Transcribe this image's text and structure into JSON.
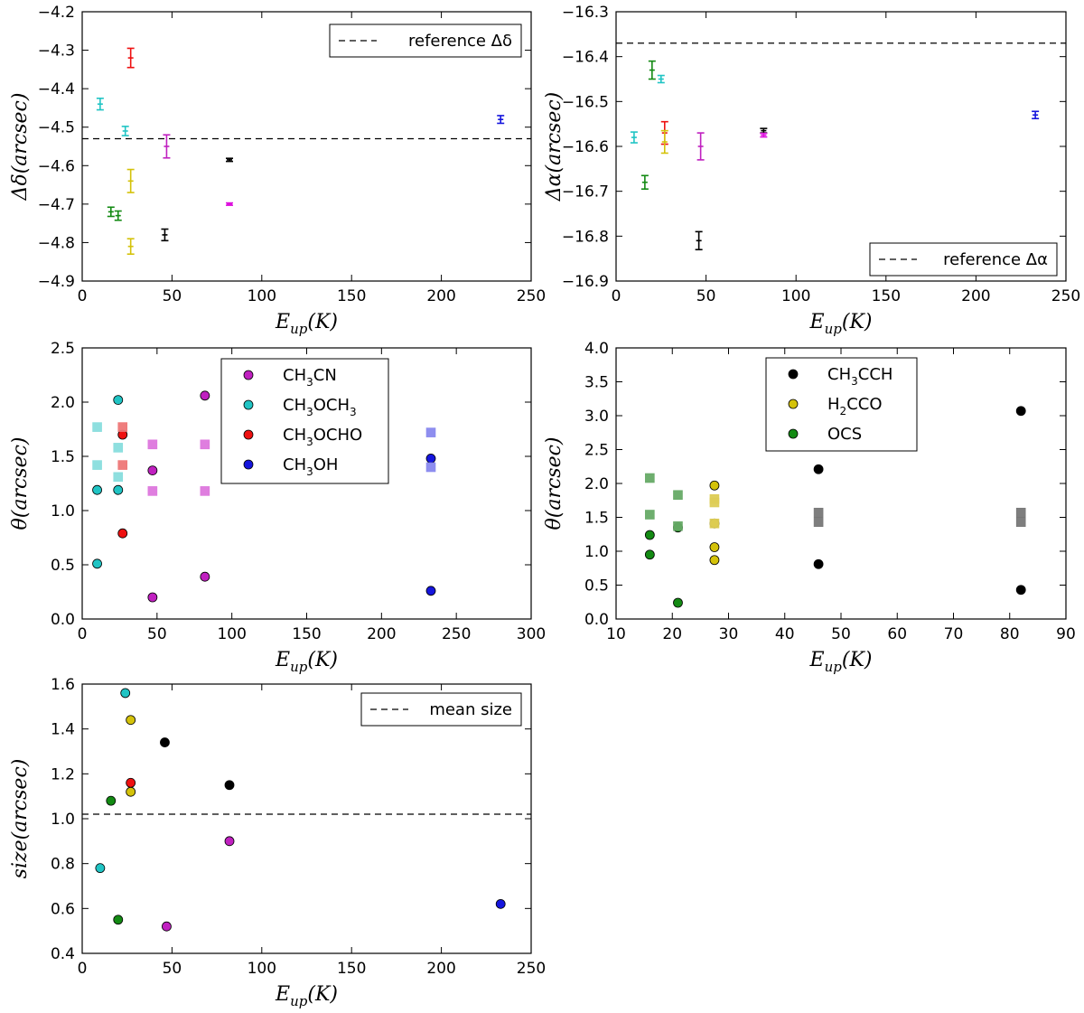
{
  "chart_data": [
    {
      "id": "ddec",
      "type": "scatter",
      "title": "",
      "xlabel": "E_up(K)",
      "ylabel": "Δδ(arcsec)",
      "xlim": [
        0,
        250
      ],
      "ylim": [
        -4.9,
        -4.2
      ],
      "xticks": [
        0,
        50,
        100,
        150,
        200,
        250
      ],
      "xtick_labels": [
        "0",
        "50",
        "100",
        "150",
        "200",
        "250"
      ],
      "yticks": [
        -4.9,
        -4.8,
        -4.7,
        -4.6,
        -4.5,
        -4.4,
        -4.3,
        -4.2
      ],
      "ytick_labels": [
        "−4.9",
        "−4.8",
        "−4.7",
        "−4.6",
        "−4.5",
        "−4.4",
        "−4.3",
        "−4.2"
      ],
      "grid": false,
      "legend": {
        "position": "top-right",
        "entries": [
          {
            "label": "reference Δδ",
            "style": "dashed"
          }
        ]
      },
      "hlines": [
        {
          "y": -4.53,
          "style": "dashed",
          "color": "#000000",
          "label": "reference Δδ"
        }
      ],
      "errorbars": [
        {
          "x": 10,
          "y": -4.44,
          "err": 0.015,
          "color": "#20c4c4"
        },
        {
          "x": 24,
          "y": -4.51,
          "err": 0.012,
          "color": "#20c4c4"
        },
        {
          "x": 27,
          "y": -4.32,
          "err": 0.025,
          "color": "#ee1111"
        },
        {
          "x": 47,
          "y": -4.55,
          "err": 0.03,
          "color": "#c020c0"
        },
        {
          "x": 27,
          "y": -4.64,
          "err": 0.03,
          "color": "#d4c20a"
        },
        {
          "x": 27,
          "y": -4.81,
          "err": 0.02,
          "color": "#d4c20a"
        },
        {
          "x": 16,
          "y": -4.72,
          "err": 0.012,
          "color": "#138a13"
        },
        {
          "x": 20,
          "y": -4.73,
          "err": 0.012,
          "color": "#138a13"
        },
        {
          "x": 46,
          "y": -4.78,
          "err": 0.015,
          "color": "#000000"
        },
        {
          "x": 82,
          "y": -4.585,
          "err": 0.004,
          "color": "#000000"
        },
        {
          "x": 82,
          "y": -4.7,
          "err": 0.003,
          "color": "#dd11dd"
        },
        {
          "x": 233,
          "y": -4.48,
          "err": 0.01,
          "color": "#1515dd"
        }
      ]
    },
    {
      "id": "dra",
      "type": "scatter",
      "title": "",
      "xlabel": "E_up(K)",
      "ylabel": "Δα(arcsec)",
      "xlim": [
        0,
        250
      ],
      "ylim": [
        -16.9,
        -16.3
      ],
      "xticks": [
        0,
        50,
        100,
        150,
        200,
        250
      ],
      "xtick_labels": [
        "0",
        "50",
        "100",
        "150",
        "200",
        "250"
      ],
      "yticks": [
        -16.9,
        -16.8,
        -16.7,
        -16.6,
        -16.5,
        -16.4,
        -16.3
      ],
      "ytick_labels": [
        "−16.9",
        "−16.8",
        "−16.7",
        "−16.6",
        "−16.5",
        "−16.4",
        "−16.3"
      ],
      "grid": false,
      "legend": {
        "position": "bottom-right",
        "entries": [
          {
            "label": "reference Δα",
            "style": "dashed"
          }
        ]
      },
      "hlines": [
        {
          "y": -16.37,
          "style": "dashed",
          "color": "#000000",
          "label": "reference Δα"
        }
      ],
      "errorbars": [
        {
          "x": 10,
          "y": -16.58,
          "err": 0.012,
          "color": "#20c4c4"
        },
        {
          "x": 25,
          "y": -16.45,
          "err": 0.008,
          "color": "#20c4c4"
        },
        {
          "x": 20,
          "y": -16.43,
          "err": 0.02,
          "color": "#138a13"
        },
        {
          "x": 16,
          "y": -16.68,
          "err": 0.015,
          "color": "#138a13"
        },
        {
          "x": 27,
          "y": -16.57,
          "err": 0.025,
          "color": "#ee1111"
        },
        {
          "x": 27,
          "y": -16.59,
          "err": 0.025,
          "color": "#d4c20a"
        },
        {
          "x": 47,
          "y": -16.6,
          "err": 0.03,
          "color": "#c020c0"
        },
        {
          "x": 46,
          "y": -16.81,
          "err": 0.02,
          "color": "#000000"
        },
        {
          "x": 82,
          "y": -16.565,
          "err": 0.005,
          "color": "#000000"
        },
        {
          "x": 82,
          "y": -16.575,
          "err": 0.004,
          "color": "#dd11dd"
        },
        {
          "x": 233,
          "y": -16.53,
          "err": 0.008,
          "color": "#1515dd"
        }
      ]
    },
    {
      "id": "theta1",
      "type": "scatter",
      "title": "",
      "xlabel": "E_up(K)",
      "ylabel": "θ(arcsec)",
      "xlim": [
        0,
        300
      ],
      "ylim": [
        0.0,
        2.5
      ],
      "xticks": [
        0,
        50,
        100,
        150,
        200,
        250,
        300
      ],
      "xtick_labels": [
        "0",
        "50",
        "100",
        "150",
        "200",
        "250",
        "300"
      ],
      "yticks": [
        0.0,
        0.5,
        1.0,
        1.5,
        2.0,
        2.5
      ],
      "ytick_labels": [
        "0.0",
        "0.5",
        "1.0",
        "1.5",
        "2.0",
        "2.5"
      ],
      "grid": false,
      "legend": {
        "position": "top-center",
        "entries": [
          {
            "label": "CH",
            "sub": "3",
            "rest": "CN",
            "color": "#c020c0"
          },
          {
            "label": "CH",
            "sub": "3",
            "rest": "OCH",
            "sub2": "3",
            "color": "#20c4c4"
          },
          {
            "label": "CH",
            "sub": "3",
            "rest": "OCHO",
            "color": "#ee1111"
          },
          {
            "label": "CH",
            "sub": "3",
            "rest": "OH",
            "color": "#1515dd"
          }
        ]
      },
      "series": [
        {
          "name": "CH3CN",
          "marker": "circle",
          "color": "#c020c0",
          "x": [
            47,
            82,
            47,
            82
          ],
          "y": [
            1.37,
            2.06,
            0.2,
            0.39
          ]
        },
        {
          "name": "CH3CN (squares)",
          "marker": "square",
          "color": "#dd77dd",
          "x": [
            47,
            82,
            47,
            82
          ],
          "y": [
            1.61,
            1.61,
            1.18,
            1.18
          ]
        },
        {
          "name": "CH3OCH3",
          "marker": "circle",
          "color": "#20c4c4",
          "x": [
            10,
            24,
            24,
            10
          ],
          "y": [
            1.19,
            2.02,
            1.19,
            0.51
          ]
        },
        {
          "name": "CH3OCH3 (squares)",
          "marker": "square",
          "color": "#88dddd",
          "x": [
            10,
            10,
            24,
            24
          ],
          "y": [
            1.77,
            1.42,
            1.58,
            1.31
          ]
        },
        {
          "name": "CH3OCHO",
          "marker": "circle",
          "color": "#ee1111",
          "x": [
            27,
            27
          ],
          "y": [
            1.7,
            0.79
          ]
        },
        {
          "name": "CH3OCHO (squares)",
          "marker": "square",
          "color": "#ee7777",
          "x": [
            27,
            27
          ],
          "y": [
            1.77,
            1.42
          ]
        },
        {
          "name": "CH3OH",
          "marker": "circle",
          "color": "#1515dd",
          "x": [
            233,
            233
          ],
          "y": [
            1.48,
            0.26
          ]
        },
        {
          "name": "CH3OH (squares)",
          "marker": "square",
          "color": "#8888ee",
          "x": [
            233,
            233
          ],
          "y": [
            1.72,
            1.4
          ]
        }
      ]
    },
    {
      "id": "theta2",
      "type": "scatter",
      "title": "",
      "xlabel": "E_up(K)",
      "ylabel": "θ(arcsec)",
      "xlim": [
        10,
        90
      ],
      "ylim": [
        0.0,
        4.0
      ],
      "xticks": [
        10,
        20,
        30,
        40,
        50,
        60,
        70,
        80,
        90
      ],
      "xtick_labels": [
        "10",
        "20",
        "30",
        "40",
        "50",
        "60",
        "70",
        "80",
        "90"
      ],
      "yticks": [
        0.0,
        0.5,
        1.0,
        1.5,
        2.0,
        2.5,
        3.0,
        3.5,
        4.0
      ],
      "ytick_labels": [
        "0.0",
        "0.5",
        "1.0",
        "1.5",
        "2.0",
        "2.5",
        "3.0",
        "3.5",
        "4.0"
      ],
      "grid": false,
      "legend": {
        "position": "top-center",
        "entries": [
          {
            "label": "CH",
            "sub": "3",
            "rest": "CCH",
            "color": "#000000"
          },
          {
            "label": "H",
            "sub": "2",
            "rest": "CCO",
            "color": "#d4c20a"
          },
          {
            "label": "OCS",
            "color": "#138a13"
          }
        ]
      },
      "series": [
        {
          "name": "CH3CCH",
          "marker": "circle",
          "color": "#000000",
          "x": [
            46,
            46,
            82,
            82
          ],
          "y": [
            2.21,
            0.81,
            3.07,
            0.43
          ]
        },
        {
          "name": "CH3CCH (squares)",
          "marker": "square",
          "color": "#777777",
          "x": [
            46,
            46,
            82,
            82
          ],
          "y": [
            1.57,
            1.43,
            1.57,
            1.43
          ]
        },
        {
          "name": "H2CCO",
          "marker": "circle",
          "color": "#d4c20a",
          "x": [
            27.5,
            27.5,
            27.5,
            27.5
          ],
          "y": [
            1.97,
            1.41,
            1.06,
            0.87
          ]
        },
        {
          "name": "H2CCO (squares)",
          "marker": "square",
          "color": "#ddcc55",
          "x": [
            27.5,
            27.5,
            27.5
          ],
          "y": [
            1.77,
            1.72,
            1.41
          ]
        },
        {
          "name": "OCS",
          "marker": "circle",
          "color": "#138a13",
          "x": [
            16,
            16,
            21,
            21
          ],
          "y": [
            1.24,
            0.95,
            1.35,
            0.24
          ]
        },
        {
          "name": "OCS (squares)",
          "marker": "square",
          "color": "#66aa66",
          "x": [
            16,
            16,
            21,
            21
          ],
          "y": [
            2.08,
            1.54,
            1.83,
            1.37
          ]
        }
      ]
    },
    {
      "id": "size",
      "type": "scatter",
      "title": "",
      "xlabel": "E_up(K)",
      "ylabel": "size(arcsec)",
      "xlim": [
        0,
        250
      ],
      "ylim": [
        0.4,
        1.6
      ],
      "xticks": [
        0,
        50,
        100,
        150,
        200,
        250
      ],
      "xtick_labels": [
        "0",
        "50",
        "100",
        "150",
        "200",
        "250"
      ],
      "yticks": [
        0.4,
        0.6,
        0.8,
        1.0,
        1.2,
        1.4,
        1.6
      ],
      "ytick_labels": [
        "0.4",
        "0.6",
        "0.8",
        "1.0",
        "1.2",
        "1.4",
        "1.6"
      ],
      "grid": false,
      "legend": {
        "position": "top-right",
        "entries": [
          {
            "label": "mean size",
            "style": "dashed"
          }
        ]
      },
      "hlines": [
        {
          "y": 1.02,
          "style": "dashed",
          "color": "#000000",
          "label": "mean size"
        }
      ],
      "points": [
        {
          "x": 24,
          "y": 1.56,
          "color": "#20c4c4"
        },
        {
          "x": 10,
          "y": 0.78,
          "color": "#20c4c4"
        },
        {
          "x": 27,
          "y": 1.44,
          "color": "#d4c20a"
        },
        {
          "x": 27,
          "y": 1.12,
          "color": "#d4c20a"
        },
        {
          "x": 27,
          "y": 1.16,
          "color": "#ee1111"
        },
        {
          "x": 46,
          "y": 1.34,
          "color": "#000000"
        },
        {
          "x": 82,
          "y": 1.15,
          "color": "#000000"
        },
        {
          "x": 16,
          "y": 1.08,
          "color": "#138a13"
        },
        {
          "x": 20,
          "y": 0.55,
          "color": "#138a13"
        },
        {
          "x": 82,
          "y": 0.9,
          "color": "#c020c0"
        },
        {
          "x": 47,
          "y": 0.52,
          "color": "#c020c0"
        },
        {
          "x": 233,
          "y": 0.62,
          "color": "#1515dd"
        }
      ]
    }
  ]
}
